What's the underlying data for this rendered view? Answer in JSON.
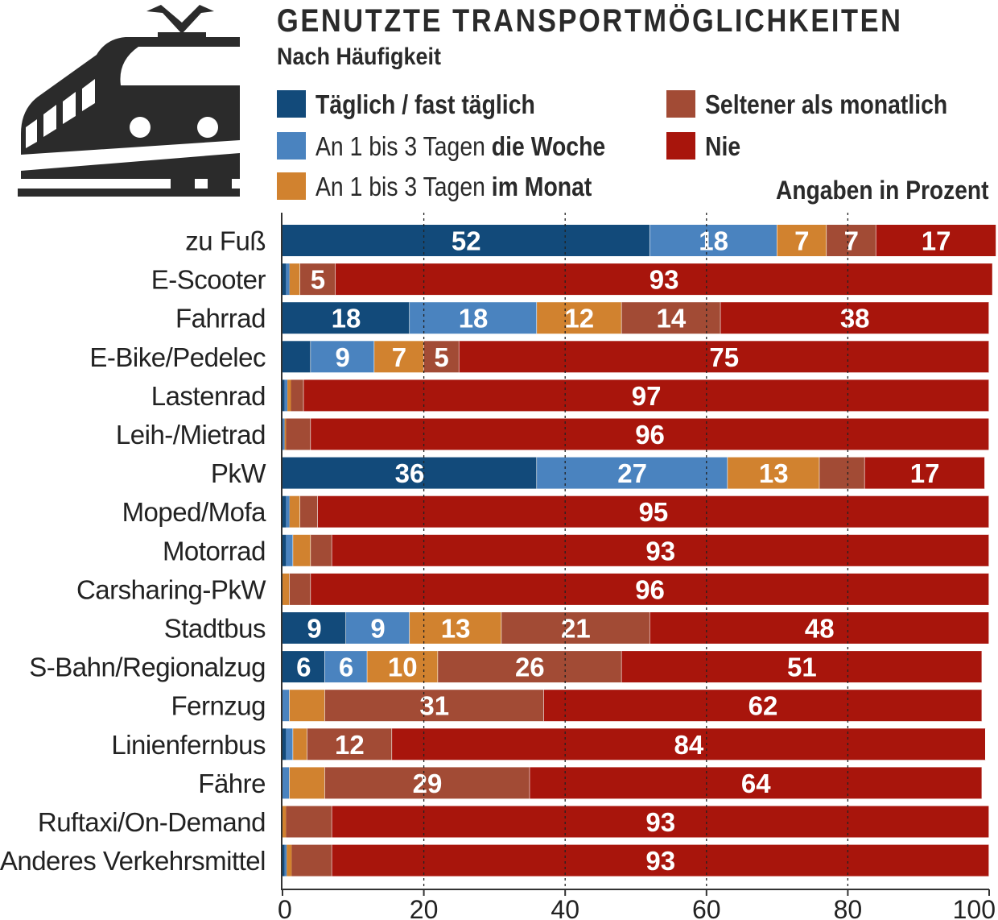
{
  "header": {
    "title": "GENUTZTE TRANSPORTMÖGLICHKEITEN",
    "subtitle": "Nach Häufigkeit",
    "icon": "train-icon",
    "note": "Angaben in Prozent"
  },
  "legend": [
    {
      "label_plain": "",
      "label_bold": "Täglich / fast täglich",
      "color": "#124a7a"
    },
    {
      "label_plain": "An 1 bis 3 Tagen ",
      "label_bold": "die Woche",
      "color": "#4a83bf"
    },
    {
      "label_plain": "An 1 bis 3 Tagen ",
      "label_bold": "im Monat",
      "color": "#d1822f"
    },
    {
      "label_plain": "",
      "label_bold": "Seltener als monatlich",
      "color": "#a24b35"
    },
    {
      "label_plain": "",
      "label_bold": "Nie",
      "color": "#a8150c"
    }
  ],
  "chart_data": {
    "type": "bar",
    "orientation": "horizontal",
    "stacked": true,
    "xlim": [
      0,
      100
    ],
    "x_ticks": [
      "0",
      "20",
      "40",
      "60",
      "80",
      "100"
    ],
    "grid": "dashed vertical lines",
    "categories": [
      "zu Fuß",
      "E-Scooter",
      "Fahrrad",
      "E-Bike/Pedelec",
      "Lastenrad",
      "Leih-/Mietrad",
      "PkW",
      "Moped/Mofa",
      "Motorrad",
      "Carsharing-PkW",
      "Stadtbus",
      "S-Bahn/Regionalzug",
      "Fernzug",
      "Linienfernbus",
      "Fähre",
      "Ruftaxi/On-Demand",
      "Anderes Verkehrsmittel"
    ],
    "series": [
      {
        "name": "Täglich / fast täglich",
        "color": "#124a7a",
        "values": [
          52,
          0.5,
          18,
          4,
          0.3,
          0,
          36,
          0.5,
          0.5,
          0,
          9,
          6,
          0,
          0.5,
          0,
          0,
          0.3
        ],
        "labels": [
          "52",
          "",
          "18",
          "",
          "",
          "",
          "36",
          "",
          "",
          "",
          "9",
          "6",
          "",
          "",
          "",
          "",
          ""
        ]
      },
      {
        "name": "An 1 bis 3 Tagen die Woche",
        "color": "#4a83bf",
        "values": [
          18,
          0.5,
          18,
          9,
          0.4,
          0.3,
          27,
          0.5,
          1,
          0,
          9,
          6,
          1,
          1,
          1,
          0,
          0.3
        ],
        "labels": [
          "18",
          "",
          "18",
          "9",
          "",
          "",
          "27",
          "",
          "",
          "",
          "9",
          "6",
          "",
          "",
          "",
          "",
          ""
        ]
      },
      {
        "name": "An 1 bis 3 Tagen im Monat",
        "color": "#d1822f",
        "values": [
          7,
          1.5,
          12,
          7,
          0.5,
          0.2,
          13,
          1.5,
          2.5,
          1,
          13,
          10,
          5,
          2,
          5,
          0.5,
          0.7
        ],
        "labels": [
          "7",
          "",
          "12",
          "7",
          "",
          "",
          "13",
          "",
          "",
          "",
          "13",
          "10",
          "",
          "",
          "",
          "",
          ""
        ]
      },
      {
        "name": "Seltener als monatlich",
        "color": "#a24b35",
        "values": [
          7,
          5,
          14,
          5,
          1.8,
          3.5,
          6.4,
          2.5,
          3,
          3,
          21,
          26,
          31,
          12,
          29,
          6.5,
          5.7
        ],
        "labels": [
          "7",
          "5",
          "14",
          "5",
          "",
          "",
          "",
          "",
          "",
          "",
          "21",
          "26",
          "31",
          "12",
          "29",
          "",
          ""
        ]
      },
      {
        "name": "Nie",
        "color": "#a8150c",
        "values": [
          17,
          93,
          38,
          75,
          97,
          96,
          17,
          95,
          93,
          96,
          48,
          51,
          62,
          84,
          64,
          93,
          93
        ],
        "labels": [
          "17",
          "93",
          "38",
          "75",
          "97",
          "96",
          "17",
          "95",
          "93",
          "96",
          "48",
          "51",
          "62",
          "84",
          "64",
          "93",
          "93"
        ]
      }
    ]
  }
}
